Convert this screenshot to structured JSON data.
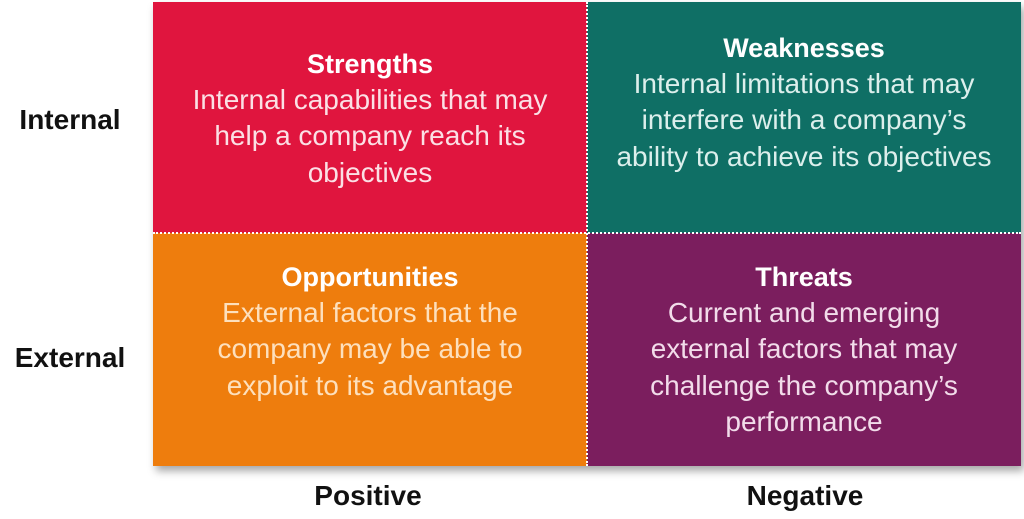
{
  "rows": {
    "internal": "Internal",
    "external": "External"
  },
  "columns": {
    "positive": "Positive",
    "negative": "Negative"
  },
  "quadrants": {
    "strengths": {
      "title": "Strengths",
      "body": "Internal capabilities that may help a company reach its objectives",
      "color": "#e0153e"
    },
    "weaknesses": {
      "title": "Weaknesses",
      "body": "Internal limitations that may interfere with a company’s ability to achieve its objectives",
      "color": "#0f6f65"
    },
    "opportunities": {
      "title": "Opportunities",
      "body": "External factors that the company may be able to exploit to its advantage",
      "color": "#ee7d0d"
    },
    "threats": {
      "title": "Threats",
      "body": "Current and emerging external factors that may challenge the company’s performance",
      "color": "#7b1e5e"
    }
  }
}
